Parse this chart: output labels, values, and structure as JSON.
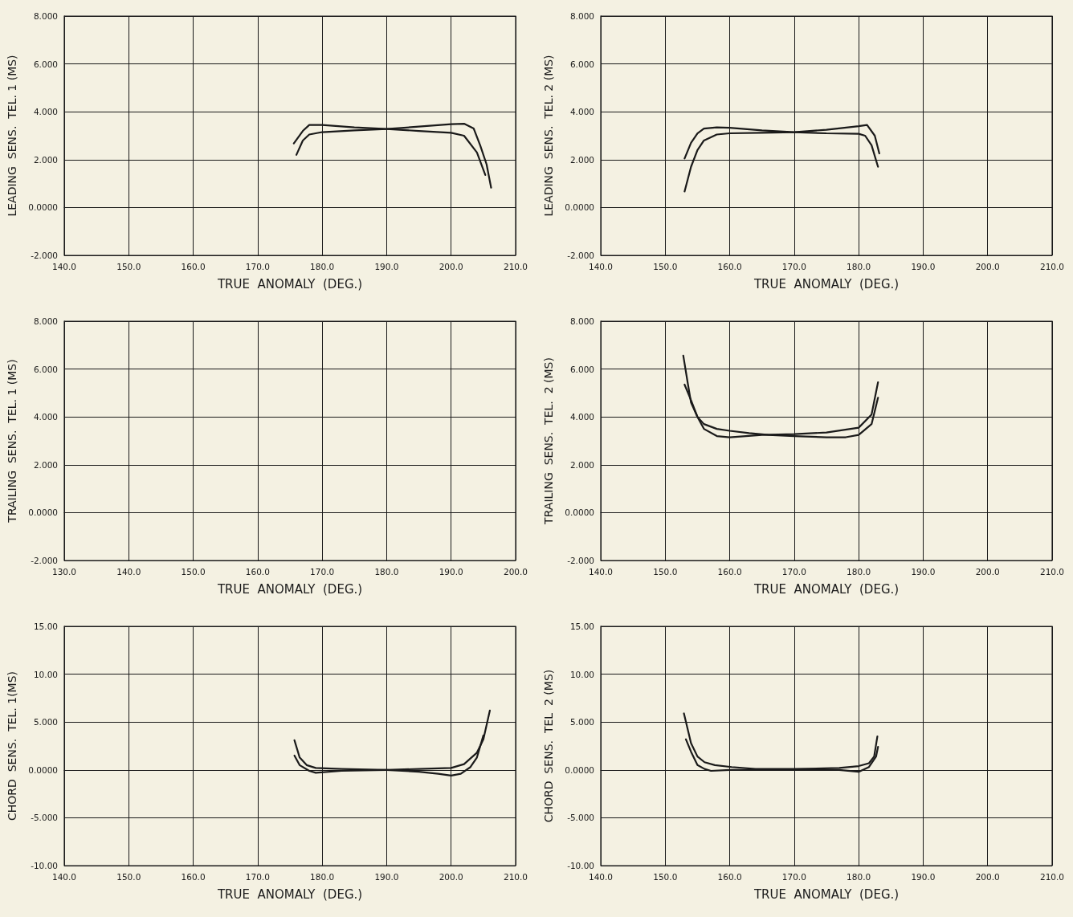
{
  "chart_data": [
    {
      "type": "line",
      "xlabel": "TRUE  ANOMALY  (DEG.)",
      "ylabel": "LEADING  SENS.  TEL. 1 (MS)",
      "xlim": [
        140,
        210
      ],
      "ylim": [
        -2,
        8
      ],
      "grid": true,
      "marker": "none",
      "line_style": "solid",
      "xticks": [
        {
          "value": 140,
          "label": "140.0"
        },
        {
          "value": 150,
          "label": "150.0"
        },
        {
          "value": 160,
          "label": "160.0"
        },
        {
          "value": 170,
          "label": "170.0"
        },
        {
          "value": 180,
          "label": "180.0"
        },
        {
          "value": 190,
          "label": "190.0"
        },
        {
          "value": 200,
          "label": "200.0"
        },
        {
          "value": 210,
          "label": "210.0"
        }
      ],
      "yticks": [
        {
          "value": -2,
          "label": "-2.000"
        },
        {
          "value": 0,
          "label": "0.0000"
        },
        {
          "value": 2,
          "label": "2.000"
        },
        {
          "value": 4,
          "label": "4.000"
        },
        {
          "value": 6,
          "label": "6.000"
        },
        {
          "value": 8,
          "label": "8.000"
        }
      ],
      "series": [
        {
          "color": "#1a1a1a",
          "x": [
            175.6,
            177,
            178,
            180,
            185,
            190,
            195,
            200,
            202,
            204,
            205.3
          ],
          "values": [
            2.68,
            3.2,
            3.45,
            3.45,
            3.35,
            3.28,
            3.2,
            3.12,
            3.0,
            2.3,
            1.36
          ]
        },
        {
          "color": "#1a1a1a",
          "x": [
            176,
            177,
            178,
            180,
            185,
            190,
            195,
            200,
            202,
            203.5,
            204.5,
            205.5,
            206.2
          ],
          "values": [
            2.2,
            2.8,
            3.05,
            3.15,
            3.22,
            3.28,
            3.38,
            3.48,
            3.5,
            3.3,
            2.6,
            1.8,
            0.83
          ]
        }
      ]
    },
    {
      "type": "line",
      "xlabel": "TRUE  ANOMALY  (DEG.)",
      "ylabel": "LEADING  SENS.  TEL. 2 (MS)",
      "xlim": [
        140,
        210
      ],
      "ylim": [
        -2,
        8
      ],
      "grid": true,
      "marker": "none",
      "line_style": "solid",
      "xticks": [
        {
          "value": 140,
          "label": "140.0"
        },
        {
          "value": 150,
          "label": "150.0"
        },
        {
          "value": 160,
          "label": "160.0"
        },
        {
          "value": 170,
          "label": "170.0"
        },
        {
          "value": 180,
          "label": "180.0"
        },
        {
          "value": 190,
          "label": "190.0"
        },
        {
          "value": 200,
          "label": "200.0"
        },
        {
          "value": 210,
          "label": "210.0"
        }
      ],
      "yticks": [
        {
          "value": -2,
          "label": "-2.000"
        },
        {
          "value": 0,
          "label": "0.0000"
        },
        {
          "value": 2,
          "label": "2.000"
        },
        {
          "value": 4,
          "label": "4.000"
        },
        {
          "value": 6,
          "label": "6.000"
        },
        {
          "value": 8,
          "label": "8.000"
        }
      ],
      "series": [
        {
          "color": "#1a1a1a",
          "x": [
            153,
            154,
            155,
            156,
            158,
            160,
            165,
            170,
            175,
            180,
            181,
            182,
            183
          ],
          "values": [
            2.05,
            2.7,
            3.1,
            3.3,
            3.35,
            3.33,
            3.22,
            3.15,
            3.1,
            3.08,
            3.0,
            2.6,
            1.7
          ]
        },
        {
          "color": "#1a1a1a",
          "x": [
            153,
            154,
            155,
            156,
            158,
            160,
            165,
            170,
            175,
            180,
            181.3,
            182.5,
            183.2
          ],
          "values": [
            0.67,
            1.7,
            2.4,
            2.8,
            3.05,
            3.1,
            3.12,
            3.15,
            3.25,
            3.4,
            3.45,
            3.0,
            2.26
          ]
        }
      ]
    },
    {
      "type": "line",
      "xlabel": "TRUE  ANOMALY  (DEG.)",
      "ylabel": "TRAILING  SENS.  TEL. 1 (MS)",
      "xlim": [
        130,
        200
      ],
      "ylim": [
        -2,
        8
      ],
      "grid": true,
      "xticks": [
        {
          "value": 130,
          "label": "130.0"
        },
        {
          "value": 140,
          "label": "140.0"
        },
        {
          "value": 150,
          "label": "150.0"
        },
        {
          "value": 160,
          "label": "160.0"
        },
        {
          "value": 170,
          "label": "170.0"
        },
        {
          "value": 180,
          "label": "180.0"
        },
        {
          "value": 190,
          "label": "190.0"
        },
        {
          "value": 200,
          "label": "200.0"
        }
      ],
      "yticks": [
        {
          "value": -2,
          "label": "-2.000"
        },
        {
          "value": 0,
          "label": "0.0000"
        },
        {
          "value": 2,
          "label": "2.000"
        },
        {
          "value": 4,
          "label": "4.000"
        },
        {
          "value": 6,
          "label": "6.000"
        },
        {
          "value": 8,
          "label": "8.000"
        }
      ]
    },
    {
      "type": "line",
      "xlabel": "TRUE  ANOMALY  (DEG.)",
      "ylabel": "TRAILING  SENS.  TEL.  2 (MS)",
      "xlim": [
        140,
        210
      ],
      "ylim": [
        -2,
        8
      ],
      "grid": true,
      "marker": "none",
      "line_style": "solid",
      "xticks": [
        {
          "value": 140,
          "label": "140.0"
        },
        {
          "value": 150,
          "label": "150.0"
        },
        {
          "value": 160,
          "label": "160.0"
        },
        {
          "value": 170,
          "label": "170.0"
        },
        {
          "value": 180,
          "label": "180.0"
        },
        {
          "value": 190,
          "label": "190.0"
        },
        {
          "value": 200,
          "label": "200.0"
        },
        {
          "value": 210,
          "label": "210.0"
        }
      ],
      "yticks": [
        {
          "value": -2,
          "label": "-2.000"
        },
        {
          "value": 0,
          "label": "0.0000"
        },
        {
          "value": 2,
          "label": "2.000"
        },
        {
          "value": 4,
          "label": "4.000"
        },
        {
          "value": 6,
          "label": "6.000"
        },
        {
          "value": 8,
          "label": "8.000"
        }
      ],
      "series": [
        {
          "color": "#1a1a1a",
          "x": [
            152.8,
            153.5,
            154,
            155,
            156,
            158,
            160,
            163,
            166,
            170,
            175,
            178,
            180,
            182,
            183
          ],
          "values": [
            6.56,
            5.4,
            4.6,
            4.0,
            3.7,
            3.5,
            3.42,
            3.32,
            3.25,
            3.2,
            3.15,
            3.15,
            3.25,
            3.7,
            4.8
          ]
        },
        {
          "color": "#1a1a1a",
          "x": [
            153,
            154,
            155,
            156,
            158,
            160,
            165,
            170,
            175,
            180,
            182,
            183
          ],
          "values": [
            5.35,
            4.7,
            4.0,
            3.5,
            3.2,
            3.15,
            3.25,
            3.28,
            3.35,
            3.55,
            4.1,
            5.45
          ]
        }
      ]
    },
    {
      "type": "line",
      "xlabel": "TRUE  ANOMALY  (DEG.)",
      "ylabel": "CHORD  SENS.  TEL. 1(MS)",
      "xlim": [
        140,
        210
      ],
      "ylim": [
        -10,
        15
      ],
      "grid": true,
      "marker": "none",
      "line_style": "solid",
      "xticks": [
        {
          "value": 140,
          "label": "140.0"
        },
        {
          "value": 150,
          "label": "150.0"
        },
        {
          "value": 160,
          "label": "160.0"
        },
        {
          "value": 170,
          "label": "170.0"
        },
        {
          "value": 180,
          "label": "180.0"
        },
        {
          "value": 190,
          "label": "190.0"
        },
        {
          "value": 200,
          "label": "200.0"
        },
        {
          "value": 210,
          "label": "210.0"
        }
      ],
      "yticks": [
        {
          "value": -10,
          "label": "-10.00"
        },
        {
          "value": -5,
          "label": "-5.000"
        },
        {
          "value": 0,
          "label": "0.0000"
        },
        {
          "value": 5,
          "label": "5.000"
        },
        {
          "value": 10,
          "label": "10.00"
        },
        {
          "value": 15,
          "label": "15.00"
        }
      ],
      "series": [
        {
          "color": "#1a1a1a",
          "x": [
            175.7,
            176.5,
            177.6,
            179,
            183,
            190,
            195,
            198,
            200,
            201.5,
            203,
            204,
            205
          ],
          "values": [
            3.1,
            1.3,
            0.5,
            0.2,
            0.1,
            0,
            -0.2,
            -0.4,
            -0.6,
            -0.4,
            0.3,
            1.3,
            3.6
          ]
        },
        {
          "color": "#1a1a1a",
          "x": [
            175.7,
            176.5,
            178,
            179,
            183,
            190,
            195,
            200,
            202,
            204,
            205,
            206
          ],
          "values": [
            1.5,
            0.5,
            -0.1,
            -0.3,
            -0.1,
            0,
            0.1,
            0.2,
            0.6,
            1.8,
            3.2,
            6.2
          ]
        }
      ]
    },
    {
      "type": "line",
      "xlabel": "TRUE  ANOMALY  (DEG.)",
      "ylabel": "CHORD  SENS.  TEL  2 (MS)",
      "xlim": [
        140,
        210
      ],
      "ylim": [
        -10,
        15
      ],
      "grid": true,
      "marker": "none",
      "line_style": "solid",
      "xticks": [
        {
          "value": 140,
          "label": "140.0"
        },
        {
          "value": 150,
          "label": "150.0"
        },
        {
          "value": 160,
          "label": "160.0"
        },
        {
          "value": 170,
          "label": "170.0"
        },
        {
          "value": 180,
          "label": "180.0"
        },
        {
          "value": 190,
          "label": "190.0"
        },
        {
          "value": 200,
          "label": "200.0"
        },
        {
          "value": 210,
          "label": "210.0"
        }
      ],
      "yticks": [
        {
          "value": -10,
          "label": "-10.00"
        },
        {
          "value": -5,
          "label": "-5.000"
        },
        {
          "value": 0,
          "label": "0.0000"
        },
        {
          "value": 5,
          "label": "5.000"
        },
        {
          "value": 10,
          "label": "10.00"
        },
        {
          "value": 15,
          "label": "15.00"
        }
      ],
      "series": [
        {
          "color": "#1a1a1a",
          "x": [
            152.9,
            154,
            155,
            156.1,
            157.7,
            160.3,
            164,
            170,
            177,
            180,
            181.6,
            182.4,
            182.9
          ],
          "values": [
            5.9,
            2.8,
            1.4,
            0.8,
            0.5,
            0.3,
            0.1,
            0.1,
            0.2,
            0.4,
            0.7,
            1.4,
            3.5
          ]
        },
        {
          "color": "#1a1a1a",
          "x": [
            153.2,
            154,
            155,
            156.1,
            157.1,
            160,
            166.6,
            177,
            180,
            181.6,
            182.7,
            183
          ],
          "values": [
            3.2,
            1.9,
            0.5,
            0.1,
            -0.1,
            0,
            0,
            0,
            -0.2,
            0.3,
            1.4,
            2.4
          ]
        }
      ]
    }
  ]
}
